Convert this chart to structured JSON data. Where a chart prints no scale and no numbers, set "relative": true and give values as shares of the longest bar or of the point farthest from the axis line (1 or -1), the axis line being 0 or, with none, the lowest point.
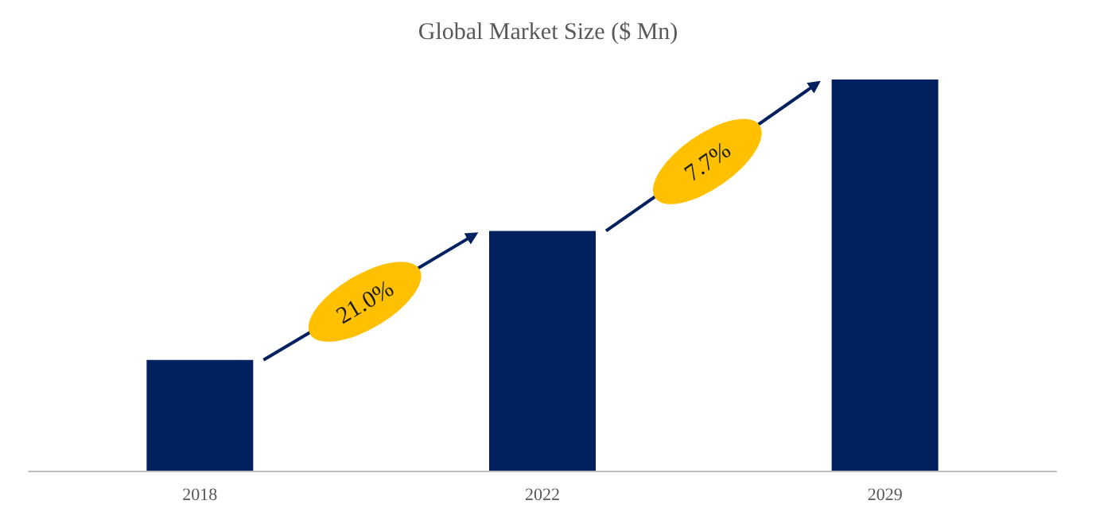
{
  "chart_data": {
    "type": "bar",
    "title": "Global Market Size ($ Mn)",
    "categories": [
      "2018",
      "2022",
      "2029"
    ],
    "values": [
      0.283,
      0.613,
      1
    ],
    "color": "#002060",
    "relative": true,
    "grid": false,
    "annotations": [
      "21.0%",
      "7.7%"
    ]
  }
}
